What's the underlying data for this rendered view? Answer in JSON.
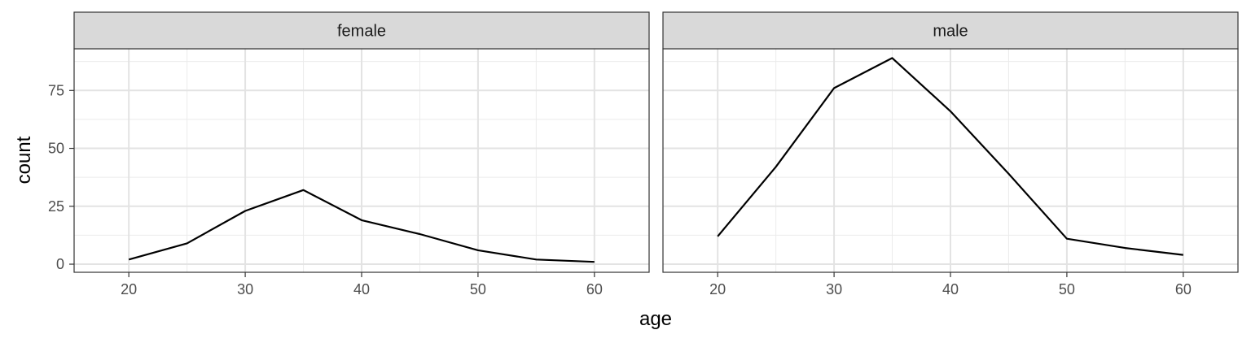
{
  "chart_data": {
    "type": "line",
    "facet_by": "sex",
    "xlabel": "age",
    "ylabel": "count",
    "xlim": [
      15.3,
      64.7
    ],
    "ylim": [
      -3.5,
      93.0
    ],
    "x_ticks": [
      20,
      30,
      40,
      50,
      60
    ],
    "y_ticks": [
      0,
      25,
      50,
      75
    ],
    "x_tick_labels": [
      "20",
      "30",
      "40",
      "50",
      "60"
    ],
    "y_tick_labels": [
      "0",
      "25",
      "50",
      "75"
    ],
    "grid": true,
    "theme": "bw",
    "line_color": "#000000",
    "strip_fill": "#d9d9d9",
    "panels": [
      {
        "label": "female",
        "x": [
          20,
          25,
          30,
          35,
          40,
          45,
          50,
          55,
          60
        ],
        "y": [
          2,
          9,
          23,
          32,
          19,
          13,
          6,
          2,
          1
        ]
      },
      {
        "label": "male",
        "x": [
          20,
          25,
          30,
          35,
          40,
          45,
          50,
          55,
          60
        ],
        "y": [
          12,
          42,
          76,
          89,
          66,
          39,
          11,
          7,
          4
        ]
      }
    ]
  }
}
